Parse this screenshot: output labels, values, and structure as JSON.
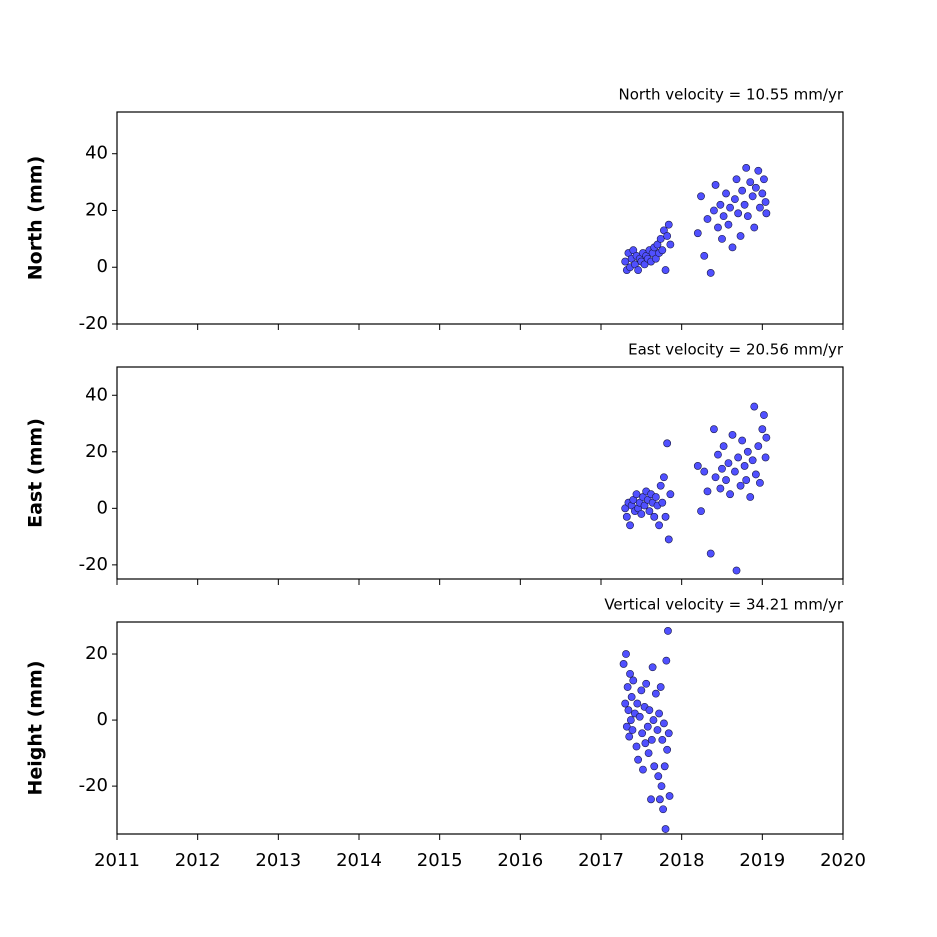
{
  "chart_data": [
    {
      "type": "scatter",
      "title": "North velocity = 10.55 mm/yr",
      "ylabel": "North (mm)",
      "xlim": [
        2011,
        2020
      ],
      "xticks": [
        2011,
        2012,
        2013,
        2014,
        2015,
        2016,
        2017,
        2018,
        2019,
        2020
      ],
      "show_xtick_labels": false,
      "ylim": [
        -20,
        54.7
      ],
      "yticks": [
        -20,
        0,
        20,
        40
      ],
      "series": [
        {
          "color": "#5050ff",
          "x": [
            2017.3,
            2017.32,
            2017.34,
            2017.36,
            2017.38,
            2017.4,
            2017.42,
            2017.44,
            2017.46,
            2017.48,
            2017.5,
            2017.52,
            2017.54,
            2017.56,
            2017.58,
            2017.6,
            2017.62,
            2017.64,
            2017.66,
            2017.68,
            2017.7,
            2017.72,
            2017.74,
            2017.76,
            2017.78,
            2017.8,
            2017.82,
            2017.84,
            2017.86,
            2018.2,
            2018.24,
            2018.28,
            2018.32,
            2018.36,
            2018.4,
            2018.42,
            2018.45,
            2018.48,
            2018.5,
            2018.52,
            2018.55,
            2018.58,
            2018.6,
            2018.63,
            2018.66,
            2018.68,
            2018.7,
            2018.73,
            2018.75,
            2018.78,
            2018.8,
            2018.82,
            2018.85,
            2018.88,
            2018.9,
            2018.92,
            2018.95,
            2018.97,
            2019.0,
            2019.02,
            2019.04,
            2019.05
          ],
          "values": [
            2,
            -1,
            5,
            0,
            3,
            6,
            1,
            4,
            -1,
            3,
            2,
            5,
            1,
            4,
            3,
            6,
            2,
            5,
            7,
            3,
            8,
            5,
            10,
            6,
            13,
            -1,
            11,
            15,
            8,
            12,
            25,
            4,
            17,
            -2,
            20,
            29,
            14,
            22,
            10,
            18,
            26,
            15,
            21,
            7,
            24,
            31,
            19,
            11,
            27,
            22,
            35,
            18,
            30,
            25,
            14,
            28,
            34,
            21,
            26,
            31,
            23,
            19
          ]
        }
      ]
    },
    {
      "type": "scatter",
      "title": "East velocity = 20.56 mm/yr",
      "ylabel": "East (mm)",
      "xlim": [
        2011,
        2020
      ],
      "xticks": [
        2011,
        2012,
        2013,
        2014,
        2015,
        2016,
        2017,
        2018,
        2019,
        2020
      ],
      "show_xtick_labels": false,
      "ylim": [
        -25,
        50
      ],
      "yticks": [
        -20,
        0,
        20,
        40
      ],
      "series": [
        {
          "color": "#5050ff",
          "x": [
            2017.3,
            2017.32,
            2017.34,
            2017.36,
            2017.38,
            2017.4,
            2017.42,
            2017.44,
            2017.46,
            2017.48,
            2017.5,
            2017.52,
            2017.54,
            2017.56,
            2017.58,
            2017.6,
            2017.62,
            2017.64,
            2017.66,
            2017.68,
            2017.7,
            2017.72,
            2017.74,
            2017.76,
            2017.78,
            2017.8,
            2017.82,
            2017.84,
            2017.86,
            2018.2,
            2018.24,
            2018.28,
            2018.32,
            2018.36,
            2018.4,
            2018.42,
            2018.45,
            2018.48,
            2018.5,
            2018.52,
            2018.55,
            2018.58,
            2018.6,
            2018.63,
            2018.66,
            2018.68,
            2018.7,
            2018.73,
            2018.75,
            2018.78,
            2018.8,
            2018.82,
            2018.85,
            2018.88,
            2018.9,
            2018.92,
            2018.95,
            2018.97,
            2019.0,
            2019.02,
            2019.04,
            2019.05
          ],
          "values": [
            0,
            -3,
            2,
            -6,
            1,
            3,
            -1,
            5,
            0,
            2,
            -2,
            4,
            1,
            6,
            3,
            -1,
            5,
            2,
            -3,
            4,
            1,
            -6,
            8,
            2,
            11,
            -3,
            23,
            -11,
            5,
            15,
            -1,
            13,
            6,
            -16,
            28,
            11,
            19,
            7,
            14,
            22,
            10,
            16,
            5,
            26,
            13,
            -22,
            18,
            8,
            24,
            15,
            10,
            20,
            4,
            17,
            36,
            12,
            22,
            9,
            28,
            33,
            18,
            25
          ]
        }
      ]
    },
    {
      "type": "scatter",
      "title": "Vertical velocity = 34.21 mm/yr",
      "ylabel": "Height (mm)",
      "xlim": [
        2011,
        2020
      ],
      "xticks": [
        2011,
        2012,
        2013,
        2014,
        2015,
        2016,
        2017,
        2018,
        2019,
        2020
      ],
      "show_xtick_labels": true,
      "ylim": [
        -34.5,
        29.7
      ],
      "yticks": [
        -20,
        0,
        20
      ],
      "series": [
        {
          "color": "#5050ff",
          "x": [
            2017.28,
            2017.3,
            2017.31,
            2017.32,
            2017.33,
            2017.34,
            2017.35,
            2017.36,
            2017.37,
            2017.38,
            2017.39,
            2017.4,
            2017.42,
            2017.44,
            2017.45,
            2017.46,
            2017.48,
            2017.5,
            2017.51,
            2017.52,
            2017.54,
            2017.55,
            2017.56,
            2017.58,
            2017.59,
            2017.6,
            2017.62,
            2017.63,
            2017.64,
            2017.65,
            2017.66,
            2017.68,
            2017.7,
            2017.71,
            2017.72,
            2017.73,
            2017.74,
            2017.75,
            2017.76,
            2017.77,
            2017.78,
            2017.79,
            2017.8,
            2017.81,
            2017.82,
            2017.83,
            2017.84,
            2017.85
          ],
          "values": [
            17,
            5,
            20,
            -2,
            10,
            3,
            -5,
            14,
            0,
            7,
            -3,
            12,
            2,
            -8,
            5,
            -12,
            1,
            9,
            -4,
            -15,
            4,
            -7,
            11,
            -2,
            -10,
            3,
            -24,
            -6,
            16,
            0,
            -14,
            8,
            -3,
            -17,
            2,
            -24,
            10,
            -20,
            -6,
            -27,
            -1,
            -14,
            -33,
            18,
            -9,
            27,
            -4,
            -23
          ]
        }
      ]
    }
  ]
}
